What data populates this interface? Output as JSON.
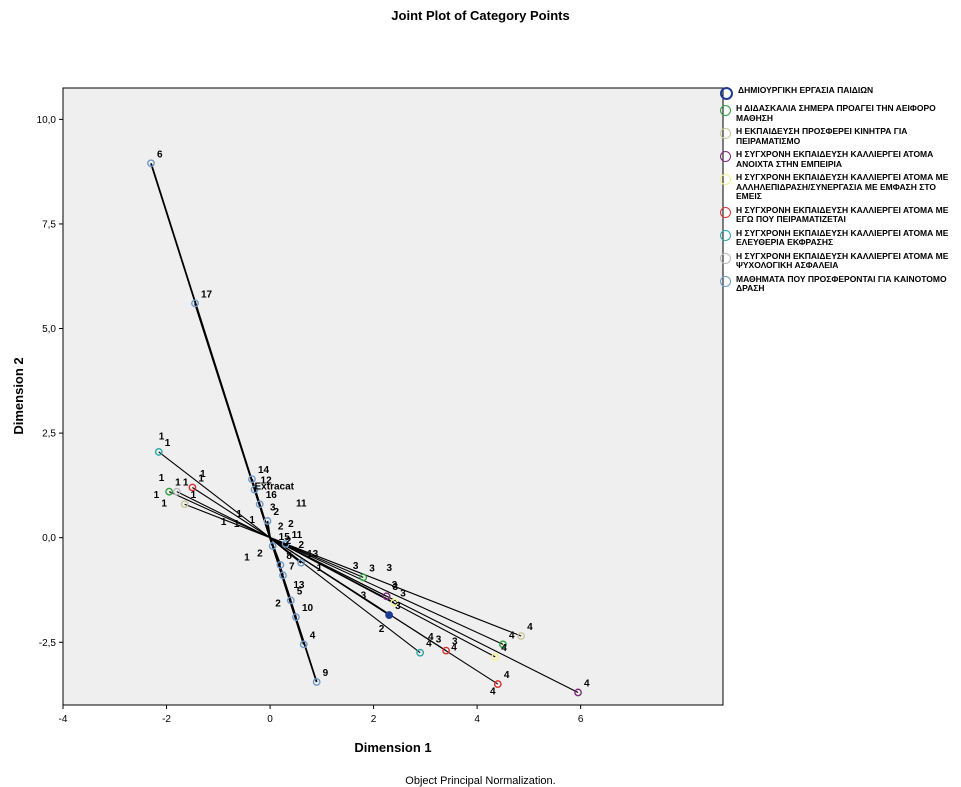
{
  "chart_data": {
    "type": "scatter",
    "title": "Joint Plot of Category Points",
    "xlabel": "Dimension 1",
    "ylabel": "Dimension 2",
    "xlim": [
      -4,
      8.75
    ],
    "ylim": [
      -4,
      10.75
    ],
    "x_ticks": [
      "-4",
      "-2",
      "0",
      "2",
      "4",
      "6"
    ],
    "x_tick_values": [
      -4,
      -2,
      0,
      2,
      4,
      6
    ],
    "y_ticks": [
      "-2,5",
      "0,0",
      "2,5",
      "5,0",
      "7,5",
      "10,0"
    ],
    "y_tick_values": [
      -2.5,
      0,
      2.5,
      5,
      7.5,
      10
    ],
    "footnote": "Object Principal Normalization.",
    "centroid_label": "Extracat",
    "centroid_label_pos": [
      -0.3,
      1.15
    ],
    "legend_position": "right",
    "series": [
      {
        "name": "ΔΗΜΙΟΥΡΓΙΚΗ ΕΡΓΑΣΙΑ ΠΑΙΔΙΩΝ",
        "color": "#1f3a93",
        "points": [
          {
            "x": 2.3,
            "y": -1.85,
            "label": "3"
          }
        ]
      },
      {
        "name": "Η ΔΙΔΑΣΚΑΛΙΑ ΣΗΜΕΡΑ ΠΡΟΑΓΕΙ ΤΗΝ ΑΕΙΦΟΡΟ ΜΑΘΗΣΗ",
        "color": "#2e9e3e",
        "points": [
          {
            "x": -1.95,
            "y": 1.1,
            "label": "1"
          },
          {
            "x": 4.5,
            "y": -2.55,
            "label": "4"
          },
          {
            "x": 1.8,
            "y": -0.95,
            "label": "3"
          }
        ]
      },
      {
        "name": "Η ΕΚΠΑΙΔΕΥΣΗ ΠΡΟΣΦΕΡΕΙ ΚΙΝΗΤΡΑ ΓΙΑ ΠΕΙΡΑΜΑΤΙΣΜΟ",
        "color": "#c8c89a",
        "points": [
          {
            "x": -1.65,
            "y": 0.8,
            "label": "1"
          },
          {
            "x": 4.85,
            "y": -2.35,
            "label": "4"
          }
        ]
      },
      {
        "name": "Η ΣΥΓΧΡΟΝΗ ΕΚΠΑΙΔΕΥΣΗ ΚΑΛΛΙΕΡΓΕΙ ΑΤΟΜΑ ΑΝΟΙΧΤΑ ΣΤΗΝ ΕΜΠΕΙΡΙΑ",
        "color": "#7a2a7a",
        "points": [
          {
            "x": 5.95,
            "y": -3.7,
            "label": "4"
          },
          {
            "x": 2.25,
            "y": -1.4,
            "label": "3"
          }
        ]
      },
      {
        "name": "Η ΣΥΓΧΡΟΝΗ ΕΚΠΑΙΔΕΥΣΗ ΚΑΛΛΙΕΡΓΕΙ ΑΤΟΜΑ ΜΕ ΑΛΛΗΛΕΠΙΔΡΑΣΗ/ΣΥΝΕΡΓΑΣΙΑ ΜΕ ΕΜΦΑΣΗ ΣΤΟ ΕΜΕΙΣ",
        "color": "#f2f28a",
        "points": [
          {
            "x": 4.35,
            "y": -2.85,
            "label": "4"
          },
          {
            "x": 2.4,
            "y": -1.55,
            "label": "3"
          }
        ]
      },
      {
        "name": "Η ΣΥΓΧΡΟΝΗ ΕΚΠΑΙΔΕΥΣΗ ΚΑΛΛΙΕΡΓΕΙ ΑΤΟΜΑ ΜΕ ΕΓΩ ΠΟΥ ΠΕΙΡΑΜΑΤΙΖΕΤΑΙ",
        "color": "#d93030",
        "points": [
          {
            "x": -1.5,
            "y": 1.2,
            "label": "1"
          },
          {
            "x": 4.4,
            "y": -3.5,
            "label": "4"
          },
          {
            "x": 3.4,
            "y": -2.7,
            "label": "3"
          }
        ]
      },
      {
        "name": "Η ΣΥΓΧΡΟΝΗ ΕΚΠΑΙΔΕΥΣΗ ΚΑΛΛΙΕΡΓΕΙ ΑΤΟΜΑ ΜΕ ΕΛΕΥΘΕΡΙΑ ΕΚΦΡΑΣΗΣ",
        "color": "#2aa6a6",
        "points": [
          {
            "x": -2.15,
            "y": 2.05,
            "label": "1"
          },
          {
            "x": 2.9,
            "y": -2.75,
            "label": "4"
          }
        ]
      },
      {
        "name": "Η ΣΥΓΧΡΟΝΗ ΕΚΠΑΙΔΕΥΣΗ ΚΑΛΛΙΕΡΓΕΙ ΑΤΟΜΑ ΜΕ ΨΥΧΟΛΟΓΙΚΗ ΑΣΦΑΛΕΙΑ",
        "color": "#b8b8b8",
        "points": [
          {
            "x": -1.8,
            "y": 1.1,
            "label": "1"
          }
        ]
      },
      {
        "name": "ΜΑΘΗΜΑΤΑ ΠΟΥ ΠΡΟΣΦΕΡΟΝΤΑΙ ΓΙΑ ΚΑΙΝΟΤΟΜΟ ΔΡΑΣΗ",
        "color": "#6c9acb",
        "points": [
          {
            "x": -2.3,
            "y": 8.95,
            "label": "6"
          },
          {
            "x": -1.45,
            "y": 5.6,
            "label": "17"
          },
          {
            "x": -0.35,
            "y": 1.4,
            "label": "14"
          },
          {
            "x": -0.3,
            "y": 1.15,
            "label": "12"
          },
          {
            "x": -0.2,
            "y": 0.8,
            "label": "16"
          },
          {
            "x": -0.05,
            "y": 0.4,
            "label": "2"
          },
          {
            "x": 0.05,
            "y": -0.2,
            "label": "15"
          },
          {
            "x": 0.2,
            "y": -0.65,
            "label": "8"
          },
          {
            "x": 0.25,
            "y": -0.9,
            "label": "7"
          },
          {
            "x": 0.4,
            "y": -1.5,
            "label": "5"
          },
          {
            "x": 0.5,
            "y": -1.9,
            "label": "10"
          },
          {
            "x": 0.65,
            "y": -2.55,
            "label": "4"
          },
          {
            "x": 0.9,
            "y": -3.45,
            "label": "9"
          },
          {
            "x": 0.6,
            "y": -0.6,
            "label": "13"
          },
          {
            "x": 0.3,
            "y": -0.15,
            "label": "11"
          }
        ]
      }
    ],
    "extra_labels": [
      {
        "x": -0.65,
        "y": 0.5,
        "text": "1"
      },
      {
        "x": -0.4,
        "y": 0.35,
        "text": "1"
      },
      {
        "x": -0.95,
        "y": 0.3,
        "text": "1"
      },
      {
        "x": -0.7,
        "y": 0.25,
        "text": "1"
      },
      {
        "x": 0.15,
        "y": 0.2,
        "text": "2"
      },
      {
        "x": 0.35,
        "y": 0.25,
        "text": "2"
      },
      {
        "x": 0.55,
        "y": -0.25,
        "text": "2"
      },
      {
        "x": 0.3,
        "y": -0.15,
        "text": "2"
      },
      {
        "x": -0.25,
        "y": -0.45,
        "text": "2"
      },
      {
        "x": -0.5,
        "y": -0.55,
        "text": "1"
      },
      {
        "x": 0.0,
        "y": 0.65,
        "text": "3"
      },
      {
        "x": 0.5,
        "y": 0.75,
        "text": "11"
      },
      {
        "x": 0.1,
        "y": -1.65,
        "text": "2"
      },
      {
        "x": 0.45,
        "y": -1.2,
        "text": "13"
      },
      {
        "x": 0.9,
        "y": -0.8,
        "text": "1"
      },
      {
        "x": 1.6,
        "y": -0.75,
        "text": "3"
      },
      {
        "x": 2.25,
        "y": -0.8,
        "text": "3"
      },
      {
        "x": 1.75,
        "y": -1.45,
        "text": "3"
      },
      {
        "x": 2.1,
        "y": -2.25,
        "text": "2"
      },
      {
        "x": 3.2,
        "y": -2.5,
        "text": "3"
      },
      {
        "x": 2.35,
        "y": -1.2,
        "text": "3"
      },
      {
        "x": 4.25,
        "y": -3.75,
        "text": "4"
      },
      {
        "x": 3.05,
        "y": -2.45,
        "text": "4"
      },
      {
        "x": 3.5,
        "y": -2.7,
        "text": "4"
      },
      {
        "x": -2.15,
        "y": 2.35,
        "text": "1"
      },
      {
        "x": -2.15,
        "y": 1.35,
        "text": "1"
      },
      {
        "x": -1.35,
        "y": 1.45,
        "text": "1"
      },
      {
        "x": -2.1,
        "y": 0.75,
        "text": "1"
      },
      {
        "x": -2.25,
        "y": 0.95,
        "text": "1"
      }
    ]
  }
}
